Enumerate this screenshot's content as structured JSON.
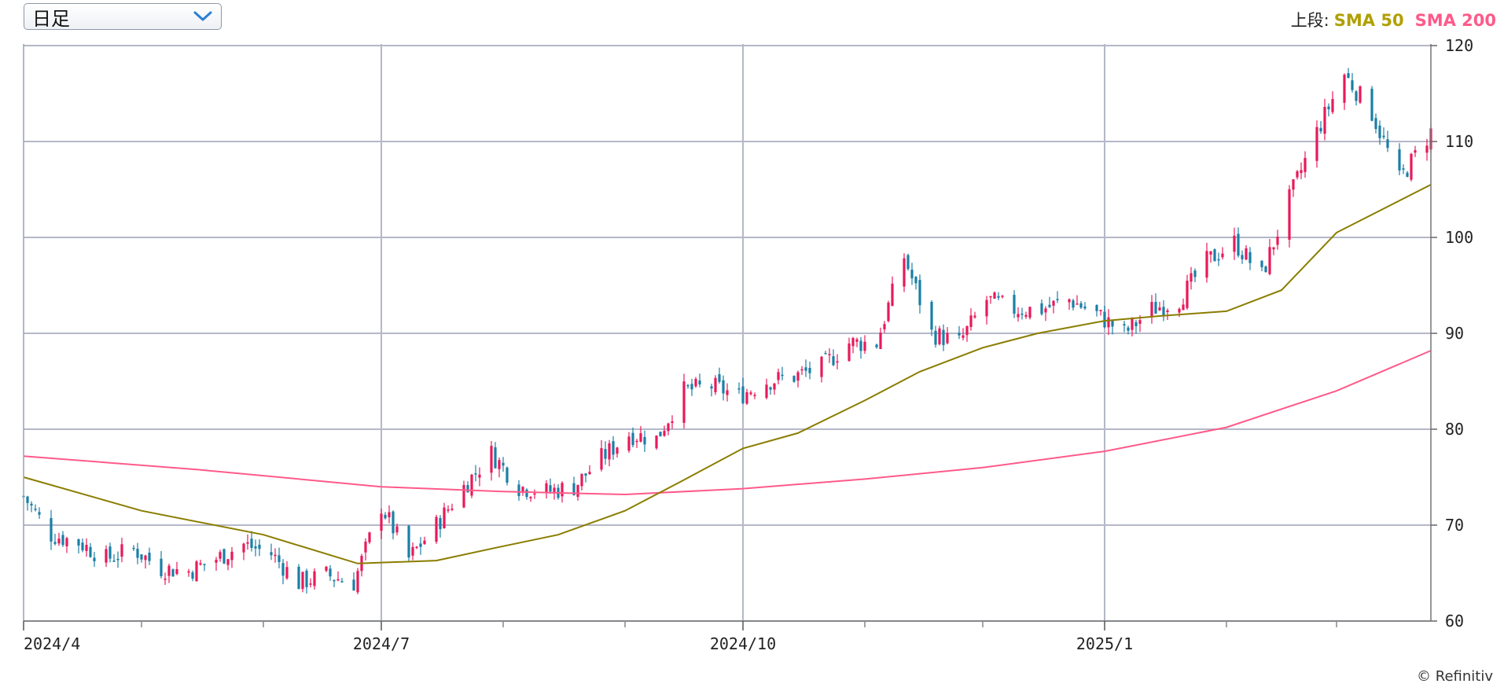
{
  "period_select": {
    "value": "日足"
  },
  "legend": {
    "prefix": "上段:",
    "items": [
      {
        "label": "SMA 50",
        "color": "#b0a000"
      },
      {
        "label": "SMA 200",
        "color": "#ff5a8a"
      }
    ]
  },
  "credit": "© Refinitiv",
  "chart_data": {
    "type": "candlestick",
    "ylim": [
      60,
      120
    ],
    "y_ticks": [
      60,
      70,
      80,
      90,
      100,
      110,
      120
    ],
    "x_range": [
      "2024-04-01",
      "2025-03-25"
    ],
    "x_tick_labels": [
      {
        "date": "2024-04-01",
        "label": "2024/4"
      },
      {
        "date": "2024-07-01",
        "label": "2024/7"
      },
      {
        "date": "2024-10-01",
        "label": "2024/10"
      },
      {
        "date": "2025-01-01",
        "label": "2025/1"
      }
    ],
    "x_grid_dates": [
      "2024-07-01",
      "2024-10-01",
      "2025-01-01"
    ],
    "x_minor_tick_dates": [
      "2024-05-01",
      "2024-06-01",
      "2024-08-01",
      "2024-09-01",
      "2024-11-01",
      "2024-12-01",
      "2025-02-01",
      "2025-03-01"
    ],
    "up_color": "#e8195a",
    "down_color": "#1a7fa6",
    "price": [
      [
        "2024-04-01",
        73.0
      ],
      [
        "2024-04-08",
        69.0
      ],
      [
        "2024-04-15",
        68.2
      ],
      [
        "2024-04-22",
        66.5
      ],
      [
        "2024-04-29",
        67.5
      ],
      [
        "2024-05-06",
        65.5
      ],
      [
        "2024-05-13",
        65.2
      ],
      [
        "2024-05-20",
        66.5
      ],
      [
        "2024-05-27",
        68.0
      ],
      [
        "2024-06-03",
        67.0
      ],
      [
        "2024-06-10",
        64.0
      ],
      [
        "2024-06-17",
        64.8
      ],
      [
        "2024-06-24",
        64.0
      ],
      [
        "2024-07-01",
        72.0
      ],
      [
        "2024-07-08",
        66.5
      ],
      [
        "2024-07-15",
        70.0
      ],
      [
        "2024-07-22",
        74.0
      ],
      [
        "2024-07-29",
        77.5
      ],
      [
        "2024-08-05",
        74.0
      ],
      [
        "2024-08-12",
        73.5
      ],
      [
        "2024-08-19",
        74.0
      ],
      [
        "2024-08-26",
        77.0
      ],
      [
        "2024-09-02",
        79.5
      ],
      [
        "2024-09-09",
        79.0
      ],
      [
        "2024-09-16",
        84.0
      ],
      [
        "2024-09-23",
        84.5
      ],
      [
        "2024-09-30",
        83.5
      ],
      [
        "2024-10-07",
        85.0
      ],
      [
        "2024-10-14",
        85.5
      ],
      [
        "2024-10-21",
        86.5
      ],
      [
        "2024-10-28",
        89.0
      ],
      [
        "2024-11-04",
        89.0
      ],
      [
        "2024-11-11",
        98.0
      ],
      [
        "2024-11-18",
        90.0
      ],
      [
        "2024-11-25",
        89.0
      ],
      [
        "2024-12-02",
        93.5
      ],
      [
        "2024-12-09",
        92.5
      ],
      [
        "2024-12-16",
        92.5
      ],
      [
        "2024-12-23",
        93.5
      ],
      [
        "2024-12-30",
        92.0
      ],
      [
        "2025-01-06",
        90.0
      ],
      [
        "2025-01-13",
        92.5
      ],
      [
        "2025-01-20",
        93.5
      ],
      [
        "2025-01-27",
        97.5
      ],
      [
        "2025-02-03",
        99.5
      ],
      [
        "2025-02-10",
        96.0
      ],
      [
        "2025-02-17",
        104.0
      ],
      [
        "2025-02-24",
        111.0
      ],
      [
        "2025-03-03",
        117.0
      ],
      [
        "2025-03-10",
        113.0
      ],
      [
        "2025-03-17",
        106.0
      ],
      [
        "2025-03-25",
        111.0
      ]
    ],
    "sma50": [
      [
        "2024-04-01",
        75.0
      ],
      [
        "2024-05-01",
        71.5
      ],
      [
        "2024-06-01",
        69.0
      ],
      [
        "2024-06-25",
        66.0
      ],
      [
        "2024-07-15",
        66.3
      ],
      [
        "2024-08-01",
        67.8
      ],
      [
        "2024-08-15",
        69.0
      ],
      [
        "2024-09-01",
        71.5
      ],
      [
        "2024-09-15",
        74.5
      ],
      [
        "2024-10-01",
        78.0
      ],
      [
        "2024-10-15",
        79.6
      ],
      [
        "2024-11-01",
        83.0
      ],
      [
        "2024-11-15",
        86.0
      ],
      [
        "2024-12-01",
        88.5
      ],
      [
        "2024-12-15",
        90.0
      ],
      [
        "2025-01-01",
        91.3
      ],
      [
        "2025-01-15",
        91.8
      ],
      [
        "2025-02-01",
        92.3
      ],
      [
        "2025-02-15",
        94.5
      ],
      [
        "2025-03-01",
        100.5
      ],
      [
        "2025-03-25",
        105.5
      ]
    ],
    "sma200": [
      [
        "2024-04-01",
        77.2
      ],
      [
        "2024-05-15",
        75.8
      ],
      [
        "2024-07-01",
        74.0
      ],
      [
        "2024-08-01",
        73.5
      ],
      [
        "2024-09-01",
        73.2
      ],
      [
        "2024-10-01",
        73.8
      ],
      [
        "2024-11-01",
        74.8
      ],
      [
        "2024-12-01",
        76.0
      ],
      [
        "2025-01-01",
        77.7
      ],
      [
        "2025-02-01",
        80.2
      ],
      [
        "2025-03-01",
        84.0
      ],
      [
        "2025-03-25",
        88.2
      ]
    ]
  }
}
